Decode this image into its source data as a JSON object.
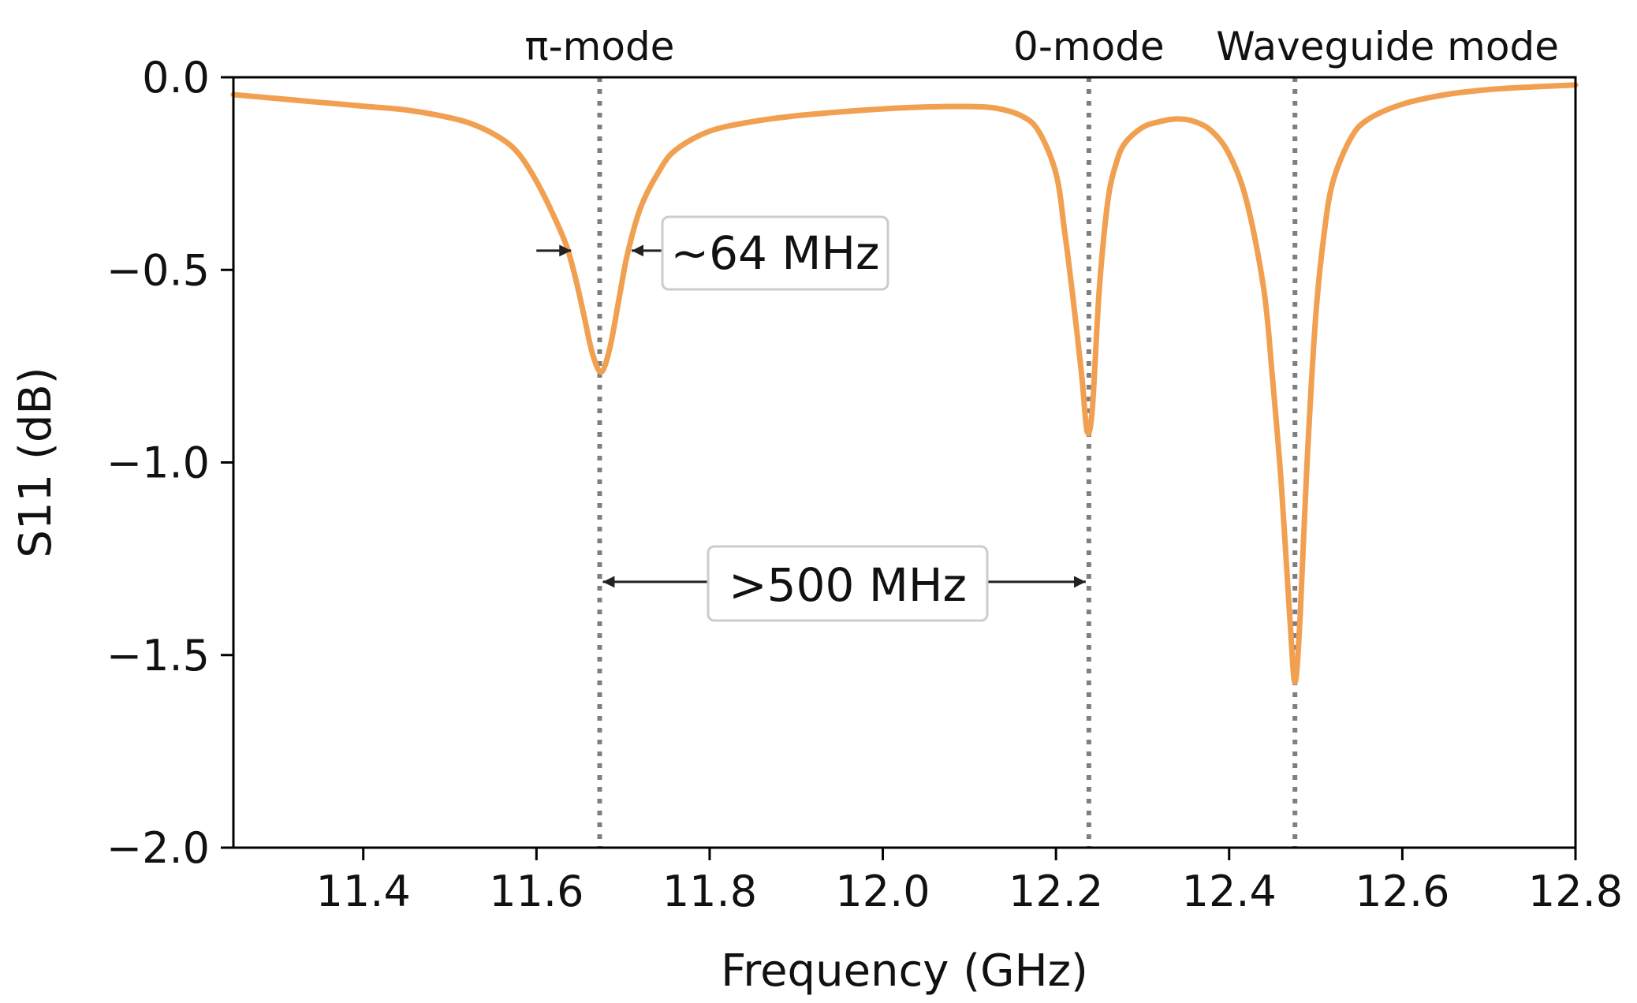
{
  "chart_data": {
    "type": "line",
    "xlabel": "Frequency (GHz)",
    "ylabel": "S11 (dB)",
    "xlim": [
      11.25,
      12.8
    ],
    "ylim": [
      -2.0,
      0.0
    ],
    "xticks": [
      11.4,
      11.6,
      11.8,
      12.0,
      12.2,
      12.4,
      12.6,
      12.8
    ],
    "xtick_labels": [
      "11.4",
      "11.6",
      "11.8",
      "12.0",
      "12.2",
      "12.4",
      "12.6",
      "12.8"
    ],
    "yticks": [
      0.0,
      -0.5,
      -1.0,
      -1.5,
      -2.0
    ],
    "ytick_labels": [
      "0.0",
      "−0.5",
      "−1.0",
      "−1.5",
      "−2.0"
    ],
    "grid": false,
    "series": [
      {
        "name": "S11",
        "color": "#f0a050",
        "x": [
          11.25,
          11.3,
          11.35,
          11.4,
          11.45,
          11.5,
          11.53,
          11.56,
          11.58,
          11.6,
          11.62,
          11.635,
          11.645,
          11.655,
          11.665,
          11.675,
          11.685,
          11.695,
          11.705,
          11.72,
          11.74,
          11.76,
          11.8,
          11.85,
          11.9,
          11.95,
          12.0,
          12.05,
          12.1,
          12.13,
          12.16,
          12.18,
          12.2,
          12.21,
          12.22,
          12.23,
          12.236,
          12.242,
          12.25,
          12.26,
          12.27,
          12.28,
          12.3,
          12.32,
          12.34,
          12.36,
          12.38,
          12.4,
          12.42,
          12.44,
          12.45,
          12.46,
          12.47,
          12.476,
          12.482,
          12.49,
          12.5,
          12.51,
          12.52,
          12.54,
          12.56,
          12.6,
          12.65,
          12.7,
          12.75,
          12.8
        ],
        "y": [
          -0.045,
          -0.055,
          -0.065,
          -0.075,
          -0.085,
          -0.105,
          -0.125,
          -0.16,
          -0.2,
          -0.27,
          -0.36,
          -0.44,
          -0.52,
          -0.62,
          -0.72,
          -0.765,
          -0.7,
          -0.58,
          -0.46,
          -0.34,
          -0.25,
          -0.19,
          -0.14,
          -0.115,
          -0.1,
          -0.09,
          -0.082,
          -0.077,
          -0.076,
          -0.08,
          -0.1,
          -0.14,
          -0.25,
          -0.4,
          -0.58,
          -0.78,
          -0.92,
          -0.86,
          -0.55,
          -0.32,
          -0.22,
          -0.17,
          -0.13,
          -0.115,
          -0.108,
          -0.115,
          -0.14,
          -0.2,
          -0.32,
          -0.55,
          -0.78,
          -1.05,
          -1.4,
          -1.57,
          -1.4,
          -1.0,
          -0.62,
          -0.4,
          -0.27,
          -0.16,
          -0.11,
          -0.07,
          -0.045,
          -0.032,
          -0.025,
          -0.02
        ]
      }
    ],
    "mode_lines": [
      {
        "label": "π-mode",
        "x": 11.673
      },
      {
        "label": "0-mode",
        "x": 12.238
      },
      {
        "label": "Waveguide mode",
        "x": 12.476
      }
    ],
    "annotations": {
      "linewidth_label": "~64 MHz",
      "linewidth_arrow_x": [
        11.64,
        11.71
      ],
      "linewidth_arrow_y": -0.45,
      "separation_label": ">500 MHz",
      "separation_arrow_x": [
        11.673,
        12.238
      ],
      "separation_arrow_y": -1.31
    }
  },
  "colors": {
    "line": "#f0a050",
    "mode_line": "#7f7f7f",
    "axis": "#000000",
    "arrow": "#222222",
    "box_border": "#cccccc"
  }
}
